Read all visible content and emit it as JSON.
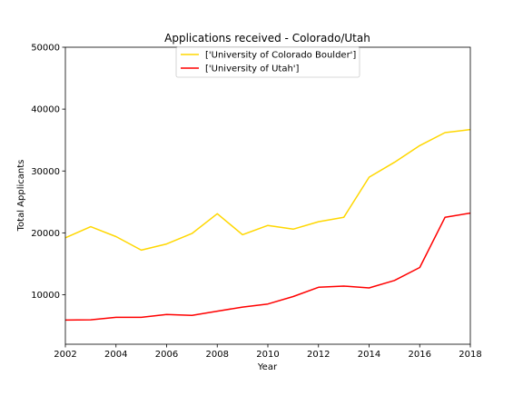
{
  "chart_data": {
    "type": "line",
    "title": "Applications received - Colorado/Utah",
    "xlabel": "Year",
    "ylabel": "Total Applicants",
    "xlim": [
      2002,
      2018
    ],
    "ylim": [
      2000,
      50000
    ],
    "xticks": [
      2002,
      2004,
      2006,
      2008,
      2010,
      2012,
      2014,
      2016,
      2018
    ],
    "yticks": [
      10000,
      20000,
      30000,
      40000,
      50000
    ],
    "grid": false,
    "legend_position": "upper center",
    "x": [
      2002,
      2003,
      2004,
      2005,
      2006,
      2007,
      2008,
      2009,
      2010,
      2011,
      2012,
      2013,
      2014,
      2015,
      2016,
      2017,
      2018
    ],
    "series": [
      {
        "name": "['University of Colorado Boulder']",
        "color": "#ffd700",
        "values": [
          19200,
          21000,
          19400,
          17200,
          18200,
          19900,
          23100,
          19700,
          21200,
          20600,
          21800,
          22500,
          29000,
          31400,
          34100,
          36200,
          36700
        ]
      },
      {
        "name": "['University of Utah']",
        "color": "#ff0000",
        "values": [
          5900,
          5950,
          6350,
          6350,
          6800,
          6650,
          7350,
          8000,
          8500,
          9700,
          11200,
          11400,
          11100,
          12300,
          14400,
          22500,
          23200
        ]
      }
    ]
  }
}
